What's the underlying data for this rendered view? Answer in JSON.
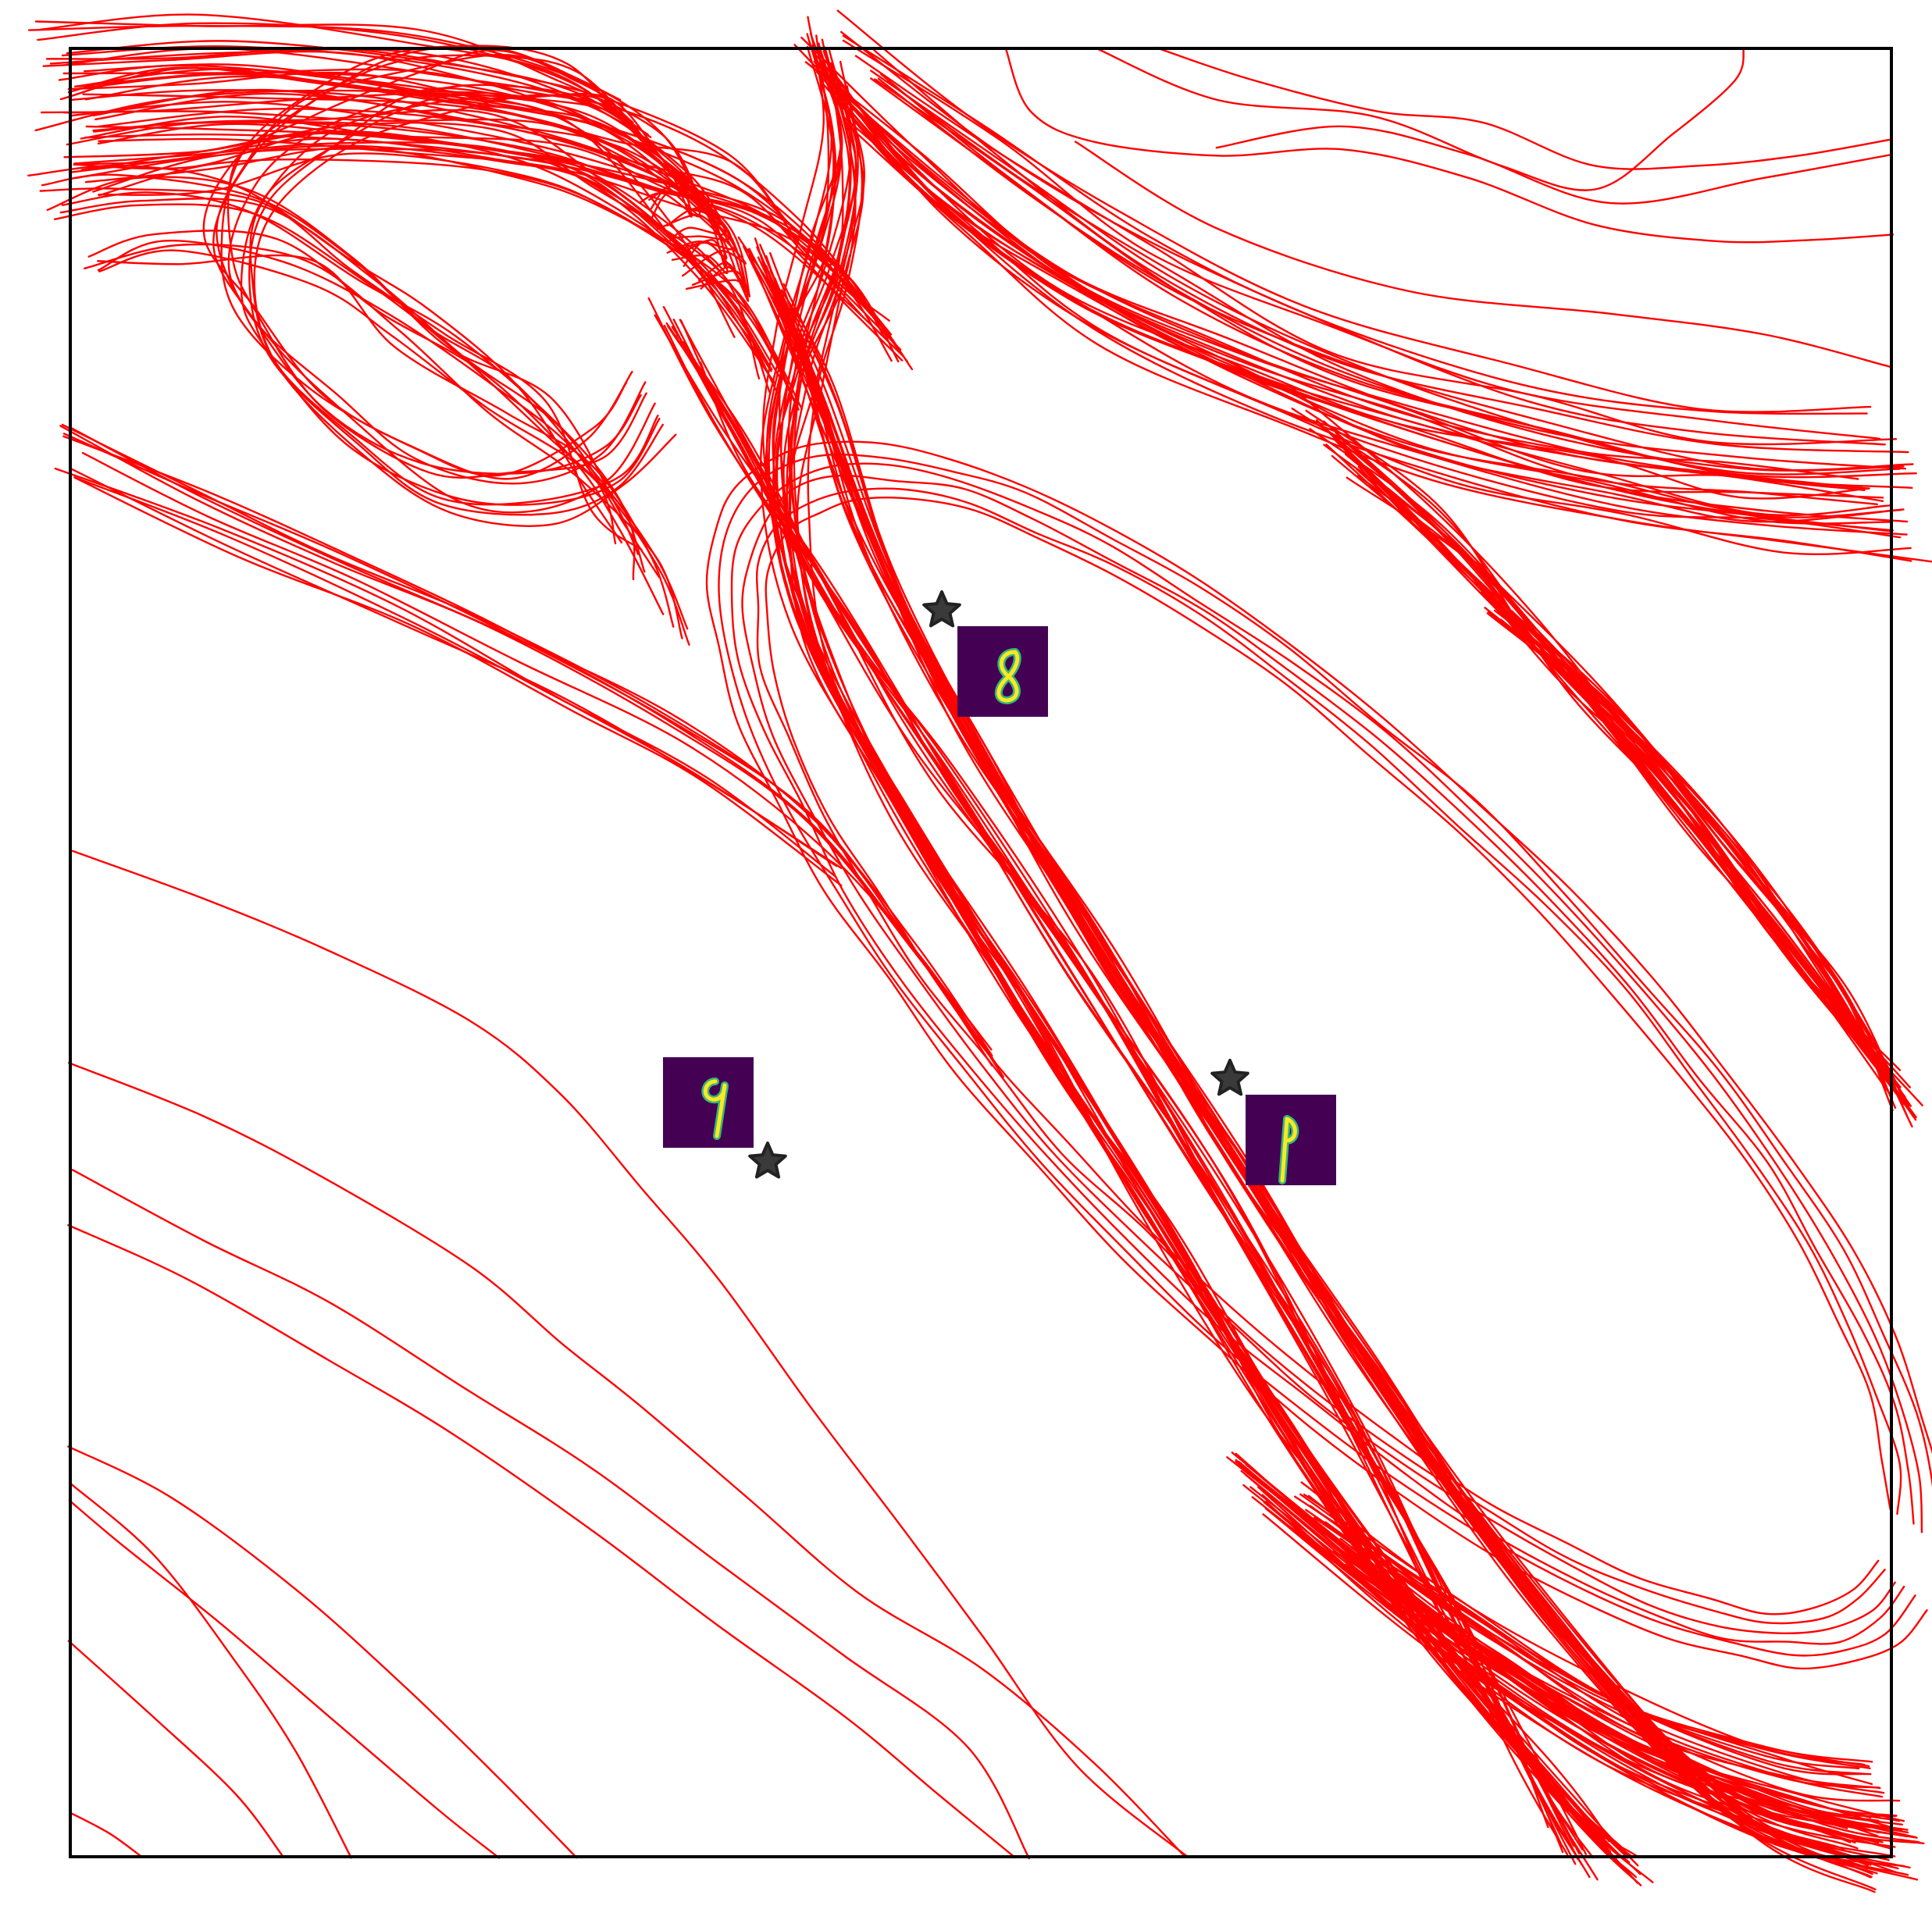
{
  "figure": {
    "line_color": "#ff0000",
    "frame_color": "#000000",
    "marker_color": "#3a3a3a",
    "thumbnail_bg": "#440154",
    "thumbnail_stroke": "#fde725",
    "thumbnail_edge": "#35b779"
  },
  "anchors": [
    {
      "name": "anchor-8",
      "digit": "8",
      "marker_icon": "star-icon"
    },
    {
      "name": "anchor-9",
      "digit": "9",
      "marker_icon": "star-icon"
    },
    {
      "name": "anchor-1",
      "digit": "1",
      "marker_icon": "star-icon"
    }
  ]
}
